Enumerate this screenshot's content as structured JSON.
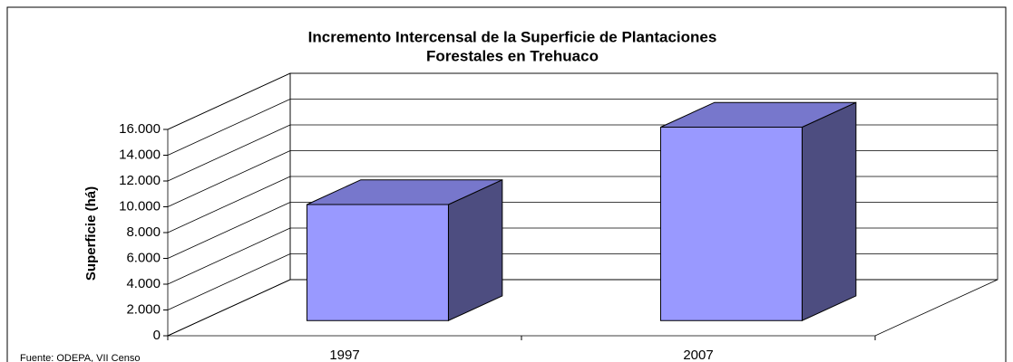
{
  "chart_data": {
    "type": "bar3d",
    "title": [
      "Incremento Intercensal de la Superficie de Plantaciones",
      "Forestales en Trehuaco"
    ],
    "ylabel": "Superficie (há)",
    "source": "Fuente: ODEPA, VII Censo",
    "categories": [
      "1997",
      "2007"
    ],
    "values": [
      9000,
      15000
    ],
    "color": "#9999ff",
    "ylim": [
      0,
      16000
    ],
    "yticks": [
      0,
      {
        "value": 2000,
        "label": "2.000"
      },
      {
        "value": 4000,
        "label": "4.000"
      },
      {
        "value": 6000,
        "label": "6.000"
      },
      {
        "value": 8000,
        "label": "8.000"
      },
      {
        "value": 10000,
        "label": "10.000"
      },
      {
        "value": 12000,
        "label": "12.000"
      },
      {
        "value": 14000,
        "label": "14.000"
      },
      {
        "value": 16000,
        "label": "16.000"
      }
    ],
    "grid": true
  }
}
